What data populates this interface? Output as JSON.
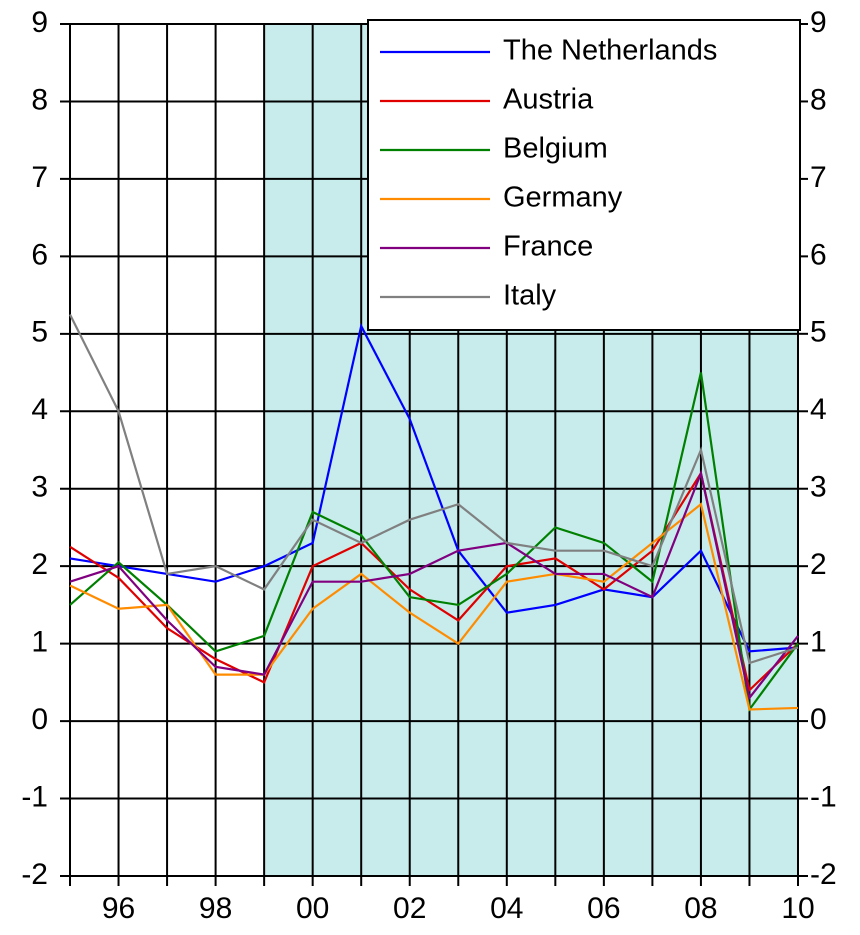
{
  "chart_data": {
    "type": "line",
    "x": [
      1995,
      1996,
      1997,
      1998,
      1999,
      2000,
      2001,
      2002,
      2003,
      2004,
      2005,
      2006,
      2007,
      2008,
      2009,
      2010
    ],
    "series": [
      {
        "name": "The Netherlands",
        "color": "#0000ff",
        "values": [
          2.1,
          2.0,
          1.9,
          1.8,
          2.0,
          2.3,
          5.1,
          3.9,
          2.2,
          1.4,
          1.5,
          1.7,
          1.6,
          2.2,
          0.9,
          0.95
        ]
      },
      {
        "name": "Austria",
        "color": "#e00000",
        "values": [
          2.25,
          1.85,
          1.2,
          0.8,
          0.5,
          2.0,
          2.3,
          1.7,
          1.3,
          2.0,
          2.1,
          1.7,
          2.2,
          3.2,
          0.4,
          1.0
        ]
      },
      {
        "name": "Belgium",
        "color": "#008000",
        "values": [
          1.5,
          2.05,
          1.5,
          0.9,
          1.1,
          2.7,
          2.4,
          1.6,
          1.5,
          1.9,
          2.5,
          2.3,
          1.8,
          4.5,
          0.15,
          1.0
        ]
      },
      {
        "name": "Germany",
        "color": "#ff8c00",
        "values": [
          1.75,
          1.45,
          1.5,
          0.6,
          0.6,
          1.45,
          1.9,
          1.4,
          1.0,
          1.8,
          1.9,
          1.8,
          2.3,
          2.8,
          0.15,
          0.17
        ]
      },
      {
        "name": "France",
        "color": "#800080",
        "values": [
          1.8,
          2.0,
          1.3,
          0.7,
          0.6,
          1.8,
          1.8,
          1.9,
          2.2,
          2.3,
          1.9,
          1.9,
          1.6,
          3.2,
          0.3,
          1.1
        ]
      },
      {
        "name": "Italy",
        "color": "#808080",
        "values": [
          5.25,
          4.0,
          1.9,
          2.0,
          1.7,
          2.6,
          2.3,
          2.6,
          2.8,
          2.3,
          2.2,
          2.2,
          2.0,
          3.5,
          0.75,
          0.95
        ]
      }
    ],
    "xlim": [
      1995,
      2010
    ],
    "xticks": [
      {
        "value": 1996,
        "label": "96"
      },
      {
        "value": 1998,
        "label": "98"
      },
      {
        "value": 2000,
        "label": "00"
      },
      {
        "value": 2002,
        "label": "02"
      },
      {
        "value": 2004,
        "label": "04"
      },
      {
        "value": 2006,
        "label": "06"
      },
      {
        "value": 2008,
        "label": "08"
      },
      {
        "value": 2010,
        "label": "10"
      }
    ],
    "x_minor_ticks": [
      1995,
      1997,
      1999,
      2001,
      2003,
      2005,
      2007,
      2009
    ],
    "ylim": [
      -2,
      9
    ],
    "yticks": [
      -2,
      -1,
      0,
      1,
      2,
      3,
      4,
      5,
      6,
      7,
      8,
      9
    ],
    "y2lim": [
      -2,
      9
    ],
    "y2ticks": [
      -2,
      -1,
      0,
      1,
      2,
      3,
      4,
      5,
      6,
      7,
      8,
      9
    ],
    "shade": {
      "from": 1999,
      "to": 2010,
      "color": "#c8ecec"
    },
    "grid": true,
    "legend": "top-right"
  }
}
